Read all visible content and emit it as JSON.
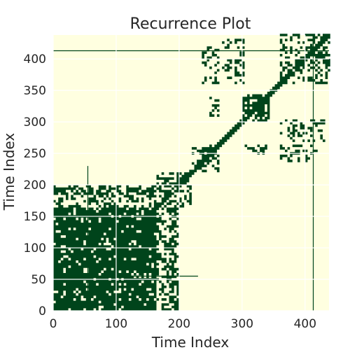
{
  "chart_data": {
    "type": "heatmap",
    "title": "Recurrence Plot",
    "xlabel": "Time Index",
    "ylabel": "Time Index",
    "xlim": [
      0,
      438
    ],
    "ylim": [
      0,
      438
    ],
    "xticks": [
      0,
      100,
      200,
      300,
      400
    ],
    "yticks": [
      0,
      50,
      100,
      150,
      200,
      250,
      300,
      350,
      400
    ],
    "grid": true,
    "colors": {
      "background": "#ffffe0",
      "recurrence": "#00441b",
      "grid": "#ffffff"
    },
    "recurrence_blocks": [
      {
        "x": [
          0,
          165
        ],
        "y": [
          0,
          165
        ],
        "density": 0.88
      },
      {
        "x": [
          0,
          165
        ],
        "y": [
          185,
          195
        ],
        "density": 0.75
      },
      {
        "x": [
          185,
          195
        ],
        "y": [
          0,
          165
        ],
        "density": 0.75
      },
      {
        "x": [
          165,
          220
        ],
        "y": [
          170,
          215
        ],
        "density": 0.55
      },
      {
        "x": [
          170,
          215
        ],
        "y": [
          165,
          220
        ],
        "density": 0.55
      },
      {
        "x": [
          160,
          200
        ],
        "y": [
          0,
          165
        ],
        "density": 0.45
      },
      {
        "x": [
          0,
          165
        ],
        "y": [
          160,
          200
        ],
        "density": 0.4
      },
      {
        "x": [
          220,
          265
        ],
        "y": [
          220,
          265
        ],
        "density": 0.45
      },
      {
        "x": [
          300,
          345
        ],
        "y": [
          300,
          345
        ],
        "density": 0.65
      },
      {
        "x": [
          360,
          438
        ],
        "y": [
          360,
          438
        ],
        "density": 0.4
      },
      {
        "x": [
          270,
          305
        ],
        "y": [
          360,
          430
        ],
        "density": 0.3
      },
      {
        "x": [
          360,
          430
        ],
        "y": [
          270,
          305
        ],
        "density": 0.3
      },
      {
        "x": [
          305,
          345
        ],
        "y": [
          250,
          265
        ],
        "density": 0.35
      },
      {
        "x": [
          250,
          265
        ],
        "y": [
          305,
          345
        ],
        "density": 0.35
      },
      {
        "x": [
          360,
          420
        ],
        "y": [
          235,
          265
        ],
        "density": 0.3
      },
      {
        "x": [
          235,
          265
        ],
        "y": [
          360,
          420
        ],
        "density": 0.3
      }
    ],
    "recurrence_lines": [
      {
        "x": [
          0,
          438
        ],
        "y": [
          413,
          413
        ]
      },
      {
        "x": [
          413,
          413
        ],
        "y": [
          0,
          438
        ]
      },
      {
        "x": [
          0,
          230
        ],
        "y": [
          55,
          55
        ]
      },
      {
        "x": [
          55,
          55
        ],
        "y": [
          0,
          230
        ]
      }
    ]
  }
}
